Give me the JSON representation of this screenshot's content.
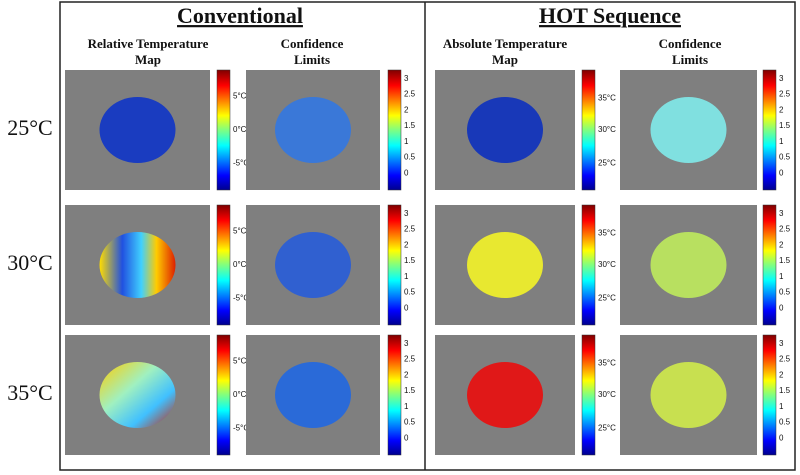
{
  "sections": [
    {
      "title": "Conventional",
      "columns": [
        [
          "Relative Temperature",
          "Map"
        ],
        [
          "Confidence",
          "Limits"
        ]
      ]
    },
    {
      "title": "HOT Sequence",
      "columns": [
        [
          "Absolute Temperature",
          "Map"
        ],
        [
          "Confidence",
          "Limits"
        ]
      ]
    }
  ],
  "rows": [
    "25°C",
    "30°C",
    "35°C"
  ],
  "colorbars": {
    "relative": [
      "5°C",
      "0°C",
      "-5°C"
    ],
    "confidence": [
      3,
      2.5,
      2,
      1.5,
      1,
      0.5,
      0
    ],
    "absolute": [
      "35°C",
      "30°C",
      "25°C"
    ]
  }
}
